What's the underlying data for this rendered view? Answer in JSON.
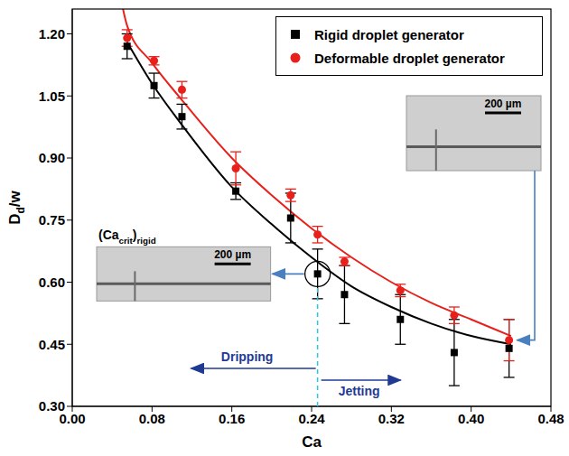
{
  "chart_data": {
    "type": "scatter",
    "xlabel": "Ca",
    "ylabel": [
      {
        "text": "D"
      },
      {
        "text": "d",
        "sub": true
      },
      {
        "text": "/w"
      }
    ],
    "xlim": [
      0,
      0.48
    ],
    "xticks": [
      {
        "value": 0,
        "label": "0.00"
      },
      {
        "value": 0.08,
        "label": "0.08"
      },
      {
        "value": 0.16,
        "label": "0.16"
      },
      {
        "value": 0.24,
        "label": "0.24"
      },
      {
        "value": 0.32,
        "label": "0.32"
      },
      {
        "value": 0.4,
        "label": "0.40"
      },
      {
        "value": 0.48,
        "label": "0.48"
      }
    ],
    "ylim": [
      0.3,
      1.26
    ],
    "yticks": [
      {
        "value": 0.3,
        "label": "0.30"
      },
      {
        "value": 0.45,
        "label": "0.45"
      },
      {
        "value": 0.6,
        "label": "0.60"
      },
      {
        "value": 0.75,
        "label": "0.75"
      },
      {
        "value": 0.9,
        "label": "0.90"
      },
      {
        "value": 1.05,
        "label": "1.05"
      },
      {
        "value": 1.2,
        "label": "1.20"
      }
    ],
    "legend": "upper right",
    "series": [
      {
        "name": "Rigid droplet generator",
        "color": "#000000",
        "marker": "square",
        "line_style": "solid",
        "x": [
          0.055,
          0.082,
          0.11,
          0.164,
          0.219,
          0.246,
          0.273,
          0.329,
          0.383,
          0.438
        ],
        "values": [
          1.17,
          1.075,
          1.0,
          0.82,
          0.755,
          0.62,
          0.57,
          0.51,
          0.43,
          0.44
        ],
        "error": [
          0.03,
          0.03,
          0.03,
          0.02,
          0.06,
          0.06,
          0.07,
          0.06,
          0.08,
          0.07
        ],
        "fit": {
          "x": [
            0.055,
            0.08,
            0.11,
            0.16,
            0.2,
            0.24,
            0.28,
            0.32,
            0.36,
            0.4,
            0.44
          ],
          "values": [
            1.18,
            1.08,
            0.98,
            0.83,
            0.74,
            0.66,
            0.59,
            0.54,
            0.5,
            0.47,
            0.45
          ]
        }
      },
      {
        "name": "Deformable droplet generator",
        "color": "#e8201c",
        "marker": "circle",
        "line_style": "solid",
        "x": [
          0.055,
          0.082,
          0.11,
          0.164,
          0.219,
          0.246,
          0.273,
          0.329,
          0.383,
          0.438
        ],
        "values": [
          1.19,
          1.135,
          1.065,
          0.875,
          0.81,
          0.715,
          0.65,
          0.58,
          0.52,
          0.46
        ],
        "error": [
          0.02,
          0.01,
          0.02,
          0.04,
          0.015,
          0.02,
          0.01,
          0.015,
          0.02,
          0.05
        ],
        "fit": {
          "x": [
            0.05,
            0.055,
            0.08,
            0.11,
            0.16,
            0.2,
            0.24,
            0.28,
            0.32,
            0.36,
            0.4,
            0.44
          ],
          "values": [
            1.27,
            1.22,
            1.13,
            1.04,
            0.9,
            0.81,
            0.73,
            0.66,
            0.6,
            0.55,
            0.51,
            0.47
          ]
        }
      }
    ],
    "annotations": {
      "critical_ca": 0.246,
      "critical_label": [
        {
          "text": "(Ca"
        },
        {
          "text": "crit",
          "sub": true
        },
        {
          "text": ")"
        },
        {
          "text": "rigid",
          "sub": true
        }
      ],
      "regimes": [
        "Dripping",
        "Jetting"
      ],
      "scale_bar": "200 µm"
    }
  }
}
